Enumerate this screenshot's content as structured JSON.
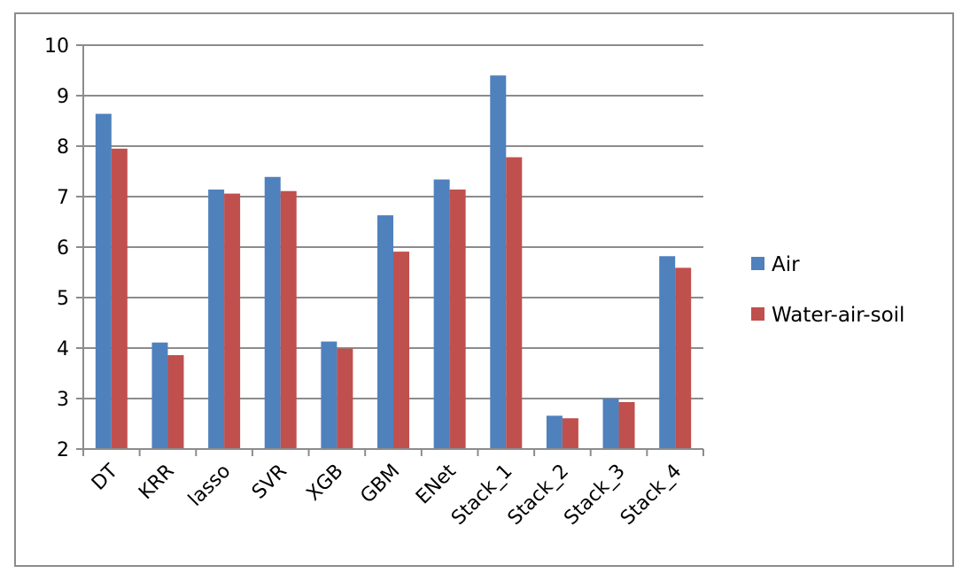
{
  "chart_data": {
    "type": "bar",
    "categories": [
      "DT",
      "KRR",
      "lasso",
      "SVR",
      "XGB",
      "GBM",
      "ENet",
      "Stack_1",
      "Stack_2",
      "Stack_3",
      "Stack_4"
    ],
    "series": [
      {
        "name": "Air",
        "color": "#4f81bd",
        "values": [
          8.64,
          4.11,
          7.14,
          7.39,
          4.13,
          6.63,
          7.34,
          9.4,
          2.66,
          3.0,
          5.82
        ]
      },
      {
        "name": "Water-air-soil",
        "color": "#c0504d",
        "values": [
          7.95,
          3.86,
          7.06,
          7.11,
          3.99,
          5.91,
          7.14,
          7.78,
          2.61,
          2.93,
          5.59
        ]
      }
    ],
    "ylim": [
      2,
      10
    ],
    "yticks": [
      "2",
      "3",
      "4",
      "5",
      "6",
      "7",
      "8",
      "9",
      "10"
    ],
    "grid": true,
    "legend_position": "right",
    "title": "",
    "xlabel": "",
    "ylabel": ""
  }
}
